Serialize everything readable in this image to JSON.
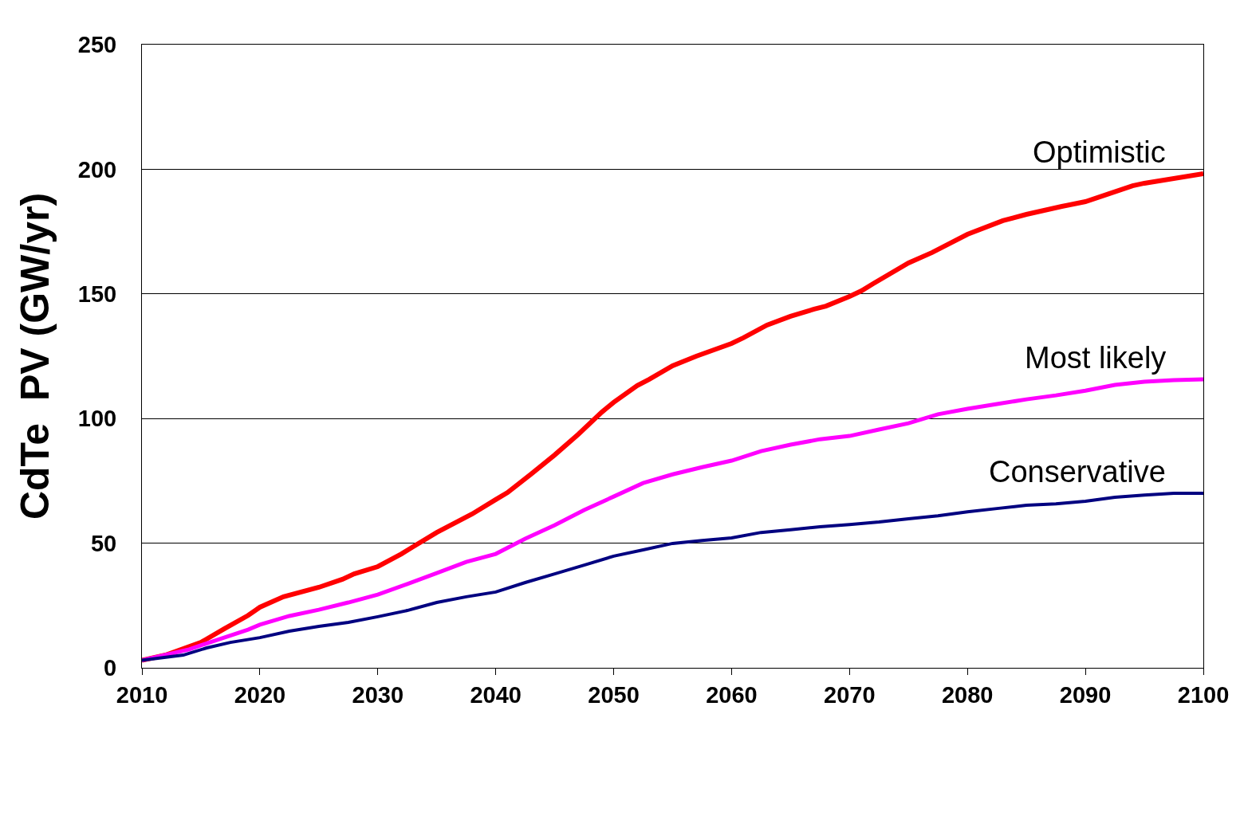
{
  "chart_data": {
    "type": "line",
    "ylabel": "CdTe  PV (GW/yr)",
    "xlim": [
      2010,
      2100
    ],
    "xticks": [
      2010,
      2020,
      2030,
      2040,
      2050,
      2060,
      2070,
      2080,
      2090,
      2100
    ],
    "ylim": [
      0,
      250
    ],
    "yticks": [
      0,
      50,
      100,
      150,
      200,
      250
    ],
    "grid": "y",
    "legend": false,
    "marker": "none",
    "line_style": "solid",
    "series": [
      {
        "name": "Optimistic",
        "color": "#ff0000",
        "x": [
          2010,
          2012,
          2015,
          2017,
          2019,
          2020,
          2022,
          2025,
          2027,
          2028,
          2030,
          2032,
          2033,
          2035,
          2038,
          2040,
          2041,
          2043,
          2045,
          2047,
          2049,
          2050,
          2052,
          2053,
          2055,
          2057,
          2060,
          2061,
          2063,
          2065,
          2067,
          2068,
          2070,
          2071,
          2072,
          2075,
          2077,
          2080,
          2083,
          2085,
          2088,
          2090,
          2092,
          2094,
          2095,
          2100
        ],
        "values": [
          3,
          5.1,
          10.2,
          15.7,
          21,
          24.3,
          28.5,
          32.3,
          35.5,
          37.7,
          40.6,
          45.7,
          48.6,
          54.3,
          61.7,
          67.5,
          70.3,
          77.7,
          85.4,
          93.7,
          102.6,
          106.5,
          113.2,
          115.7,
          121.2,
          125,
          130.1,
          132.4,
          137.5,
          141,
          143.9,
          145.1,
          149,
          151.2,
          154.1,
          162.4,
          166.6,
          173.9,
          179.4,
          181.9,
          185.1,
          187,
          190.2,
          193.4,
          194.4,
          198.2
        ]
      },
      {
        "name": "Most likely",
        "color": "#ff00ff",
        "x": [
          2010,
          2014,
          2016,
          2019,
          2020,
          2022.5,
          2025,
          2027.5,
          2030,
          2032.5,
          2035,
          2037.5,
          2040,
          2042.5,
          2045,
          2047.5,
          2050,
          2052.5,
          2055,
          2057.5,
          2060,
          2062.5,
          2065,
          2067.5,
          2070,
          2072.5,
          2075,
          2077.5,
          2080,
          2082.5,
          2085,
          2087.5,
          2090,
          2092.5,
          2095,
          2097.5,
          2100
        ],
        "values": [
          3,
          7.4,
          10.6,
          15.3,
          17.3,
          20.8,
          23.3,
          26.2,
          29.4,
          33.6,
          38,
          42.5,
          45.7,
          51.8,
          57.2,
          63.3,
          68.7,
          74.1,
          77.6,
          80.5,
          83.1,
          86.9,
          89.5,
          91.7,
          93,
          95.6,
          98.1,
          101.7,
          103.9,
          105.8,
          107.7,
          109.3,
          111.2,
          113.5,
          114.8,
          115.4,
          115.7
        ]
      },
      {
        "name": "Conservative",
        "color": "#000080",
        "x": [
          2010,
          2013.5,
          2015.5,
          2017.5,
          2020,
          2022.5,
          2025,
          2027.5,
          2030,
          2032.5,
          2035,
          2037.5,
          2040,
          2042.5,
          2045,
          2047.5,
          2050,
          2052.5,
          2055,
          2057.5,
          2060,
          2062.5,
          2065,
          2067.5,
          2070,
          2072.5,
          2075,
          2077.5,
          2080,
          2082.5,
          2085,
          2087.5,
          2090,
          2092.5,
          2095,
          2097.5,
          2100
        ],
        "values": [
          3,
          5.1,
          8,
          10.2,
          12.1,
          14.7,
          16.6,
          18.2,
          20.5,
          23,
          26.2,
          28.5,
          30.4,
          34.2,
          37.7,
          41.2,
          44.8,
          47.3,
          49.9,
          51.1,
          52.1,
          54.3,
          55.4,
          56.6,
          57.5,
          58.5,
          59.8,
          61,
          62.6,
          63.9,
          65.2,
          65.8,
          66.8,
          68.4,
          69.3,
          70,
          70
        ]
      }
    ]
  }
}
